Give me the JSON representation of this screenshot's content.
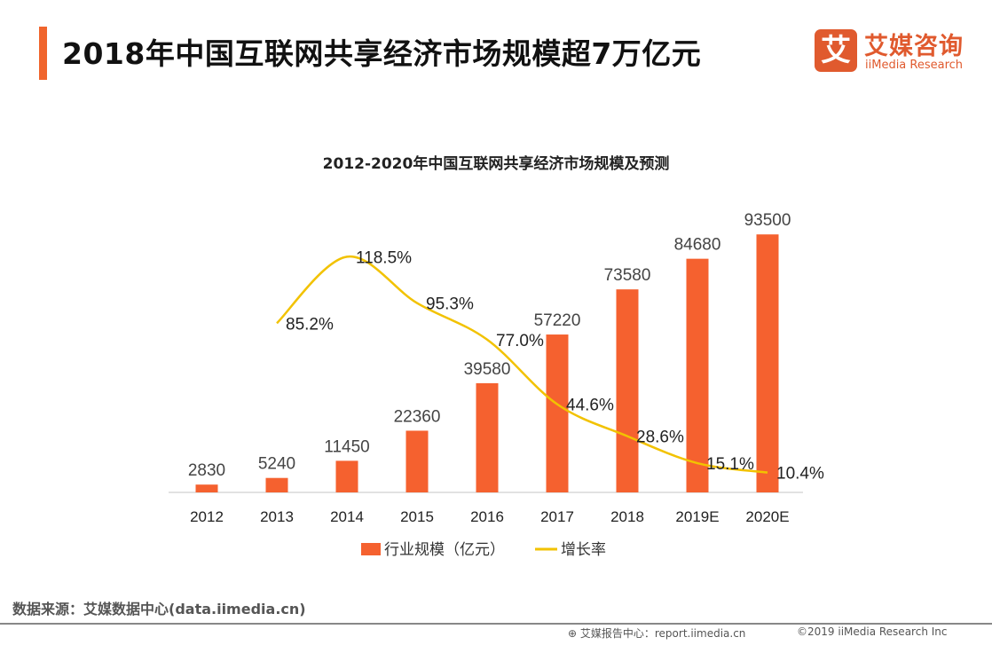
{
  "header": {
    "title": "2018年中国互联网共享经济市场规模超7万亿元"
  },
  "logo": {
    "mark": "艾",
    "name_cn": "艾媒咨询",
    "name_en": "iiMedia Research"
  },
  "chart_data": {
    "type": "bar",
    "title": "2012-2020年中国互联网共享经济市场规模及预测",
    "categories": [
      "2012",
      "2013",
      "2014",
      "2015",
      "2016",
      "2017",
      "2018",
      "2019E",
      "2020E"
    ],
    "series": [
      {
        "name": "行业规模（亿元）",
        "type": "bar",
        "color": "#F5612F",
        "values": [
          2830,
          5240,
          11450,
          22360,
          39580,
          57220,
          73580,
          84680,
          93500
        ],
        "labels": [
          "2830",
          "5240",
          "11450",
          "22360",
          "39580",
          "57220",
          "73580",
          "84680",
          "93500"
        ]
      },
      {
        "name": "增长率",
        "type": "line",
        "color": "#F2C200",
        "values": [
          null,
          85.2,
          118.5,
          95.3,
          77.0,
          44.6,
          28.6,
          15.1,
          10.4
        ],
        "labels": [
          "",
          "85.2%",
          "118.5%",
          "95.3%",
          "77.0%",
          "44.6%",
          "28.6%",
          "15.1%",
          "10.4%"
        ]
      }
    ],
    "ylim": [
      0,
      100000
    ],
    "y2lim": [
      0,
      130
    ],
    "grid": false,
    "legend": "bottom"
  },
  "footer": {
    "source": "数据来源：艾媒数据中心(data.iimedia.cn)",
    "report": "艾媒报告中心：report.iimedia.cn",
    "copyright": "©2019  iiMedia Research  Inc"
  }
}
